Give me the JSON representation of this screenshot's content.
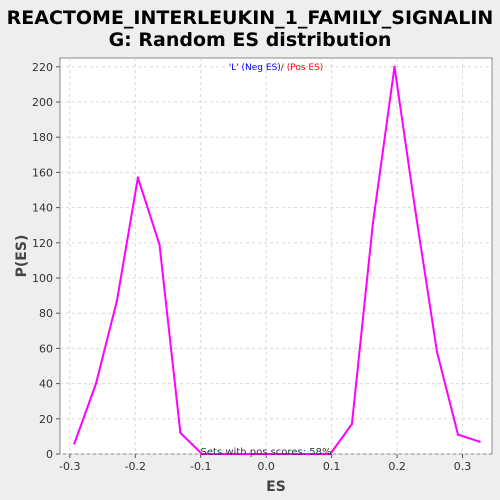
{
  "chart_data": {
    "type": "line",
    "title_lines": [
      "REACTOME_INTERLEUKIN_1_FAMILY_SIGNALIN",
      "G: Random ES distribution"
    ],
    "xlabel": "ES",
    "ylabel": "P(ES)",
    "xlim": [
      -0.315,
      0.345
    ],
    "ylim": [
      0,
      225
    ],
    "x_ticks": [
      -0.3,
      -0.2,
      -0.1,
      0.0,
      0.1,
      0.2,
      0.3
    ],
    "x_tick_labels": [
      "-0.3",
      "-0.2",
      "-0.1",
      "0.0",
      "0.1",
      "0.2",
      "0.3"
    ],
    "y_ticks": [
      0,
      20,
      40,
      60,
      80,
      100,
      120,
      140,
      160,
      180,
      200,
      220
    ],
    "y_tick_labels": [
      "0",
      "20",
      "40",
      "60",
      "80",
      "100",
      "120",
      "140",
      "160",
      "180",
      "200",
      "220"
    ],
    "grid": true,
    "legend": {
      "position": "top-center",
      "entries": [
        {
          "text": "'L' (Neg ES)",
          "color": "#0000ff"
        },
        {
          "text": "/",
          "color": "#333333"
        },
        {
          "text": " (Pos ES)",
          "color": "#ff0000"
        }
      ]
    },
    "annotation": "Sets with pos scores: 58%",
    "series": [
      {
        "color": "#ff00ff",
        "x": [
          -0.293,
          -0.26,
          -0.228,
          -0.196,
          -0.163,
          -0.131,
          -0.098,
          -0.066,
          -0.033,
          0.0,
          0.033,
          0.066,
          0.098,
          0.131,
          0.163,
          0.196,
          0.228,
          0.261,
          0.293,
          0.326
        ],
        "y": [
          6,
          40,
          87,
          157,
          119,
          12,
          0,
          0,
          0,
          0,
          0,
          0,
          0,
          17,
          131,
          220,
          138,
          58,
          11,
          7
        ]
      }
    ]
  }
}
